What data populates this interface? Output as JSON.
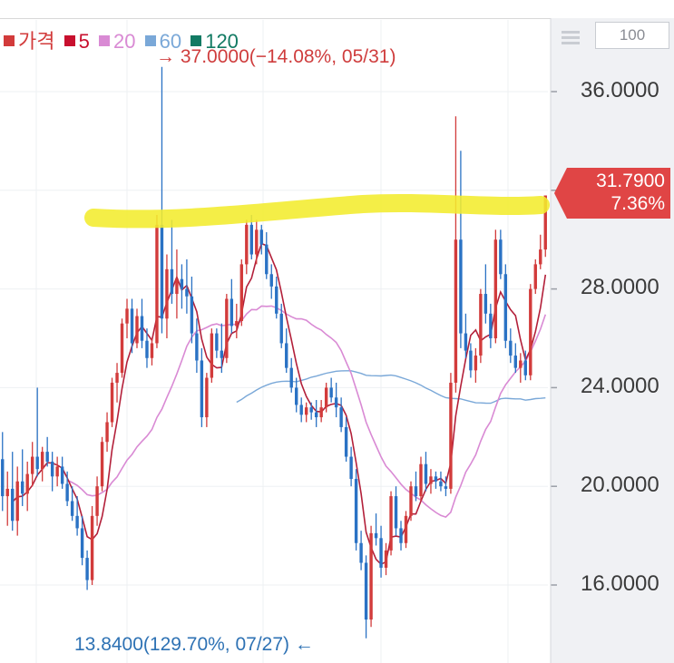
{
  "zoom": {
    "value": "100"
  },
  "icons": {
    "menu": "hamburger-menu-icon",
    "max_arrow": "arrow-right-icon",
    "min_arrow": "arrow-left-icon"
  },
  "legend": {
    "items": [
      {
        "label": "가격",
        "color": "#d23b3b"
      },
      {
        "label": "5",
        "color": "#c8102e"
      },
      {
        "label": "20",
        "color": "#d98ad4"
      },
      {
        "label": "60",
        "color": "#7aa8d8"
      },
      {
        "label": "120",
        "color": "#127a63"
      }
    ]
  },
  "annotations": {
    "max": "→ 37.0000(−14.08%, 05/31)",
    "min": "13.8400(129.70%, 07/27) ←"
  },
  "current": {
    "price": "31.7900",
    "change": "7.36%",
    "color": "#e04545"
  },
  "highlight": {
    "color": "#f2ec2e"
  },
  "chart_data": {
    "type": "candlestick",
    "up_color": "#d23b3b",
    "down_color": "#2a72c4",
    "ylim": [
      13.3,
      37.0
    ],
    "yticks": [
      "16.0000",
      "20.0000",
      "24.0000",
      "28.0000",
      "32.0000",
      "36.0000"
    ],
    "grid": true,
    "legend_position": "top-left",
    "candles": [
      [
        21.1,
        22.2,
        19.0,
        19.6
      ],
      [
        19.6,
        20.6,
        18.4,
        19.9
      ],
      [
        19.9,
        21.4,
        18.2,
        18.6
      ],
      [
        18.6,
        20.8,
        18.0,
        20.2
      ],
      [
        20.2,
        21.5,
        19.2,
        19.7
      ],
      [
        19.7,
        21.0,
        19.0,
        20.5
      ],
      [
        20.5,
        21.8,
        20.0,
        21.2
      ],
      [
        21.2,
        24.0,
        20.4,
        20.7
      ],
      [
        20.7,
        21.6,
        20.2,
        21.4
      ],
      [
        21.4,
        22.0,
        20.8,
        21.0
      ],
      [
        21.0,
        21.4,
        19.8,
        20.4
      ],
      [
        20.4,
        21.2,
        20.0,
        20.8
      ],
      [
        20.8,
        21.2,
        19.9,
        20.1
      ],
      [
        20.1,
        20.6,
        19.2,
        19.4
      ],
      [
        19.4,
        20.0,
        18.6,
        18.8
      ],
      [
        18.8,
        19.6,
        18.0,
        18.3
      ],
      [
        18.3,
        18.8,
        16.8,
        17.1
      ],
      [
        17.1,
        17.4,
        15.8,
        16.2
      ],
      [
        16.2,
        19.2,
        16.0,
        18.8
      ],
      [
        18.8,
        20.4,
        18.4,
        20.0
      ],
      [
        20.0,
        22.0,
        19.8,
        21.8
      ],
      [
        21.8,
        23.0,
        21.4,
        22.6
      ],
      [
        22.6,
        24.4,
        22.4,
        24.2
      ],
      [
        24.2,
        25.0,
        23.4,
        24.6
      ],
      [
        24.6,
        26.8,
        24.4,
        26.6
      ],
      [
        26.6,
        27.6,
        26.0,
        27.2
      ],
      [
        27.2,
        27.6,
        25.4,
        25.8
      ],
      [
        25.8,
        27.2,
        25.6,
        26.9
      ],
      [
        26.9,
        27.6,
        25.6,
        25.9
      ],
      [
        25.9,
        26.4,
        24.8,
        25.2
      ],
      [
        25.2,
        26.0,
        24.9,
        25.8
      ],
      [
        25.8,
        31.0,
        25.6,
        30.6
      ],
      [
        30.6,
        37.0,
        26.2,
        26.8
      ],
      [
        26.8,
        29.4,
        26.0,
        28.8
      ],
      [
        28.8,
        30.8,
        27.4,
        27.8
      ],
      [
        27.8,
        29.6,
        26.8,
        28.4
      ],
      [
        28.4,
        29.0,
        27.2,
        28.0
      ],
      [
        28.0,
        29.2,
        27.0,
        27.7
      ],
      [
        27.7,
        28.5,
        25.8,
        26.2
      ],
      [
        26.2,
        26.8,
        24.6,
        25.1
      ],
      [
        25.1,
        25.6,
        22.4,
        22.8
      ],
      [
        22.8,
        24.6,
        22.4,
        24.4
      ],
      [
        24.4,
        26.4,
        24.2,
        26.2
      ],
      [
        26.2,
        26.4,
        25.2,
        25.5
      ],
      [
        25.5,
        26.6,
        24.6,
        25.2
      ],
      [
        25.2,
        27.8,
        25.0,
        27.6
      ],
      [
        27.6,
        28.4,
        26.2,
        26.5
      ],
      [
        26.5,
        27.4,
        26.0,
        26.7
      ],
      [
        26.7,
        29.2,
        26.5,
        29.0
      ],
      [
        29.0,
        30.8,
        28.6,
        30.6
      ],
      [
        30.6,
        31.0,
        29.2,
        29.4
      ],
      [
        29.4,
        30.8,
        29.0,
        30.4
      ],
      [
        30.4,
        30.6,
        29.4,
        29.8
      ],
      [
        29.8,
        30.3,
        28.4,
        28.6
      ],
      [
        28.6,
        29.0,
        27.6,
        28.1
      ],
      [
        28.1,
        28.5,
        26.8,
        27.0
      ],
      [
        27.0,
        27.4,
        25.6,
        25.8
      ],
      [
        25.8,
        26.4,
        24.6,
        24.8
      ],
      [
        24.8,
        25.2,
        23.8,
        24.0
      ],
      [
        24.0,
        24.4,
        23.0,
        23.3
      ],
      [
        23.3,
        23.6,
        22.6,
        22.9
      ],
      [
        22.9,
        23.4,
        22.6,
        23.2
      ],
      [
        23.2,
        23.4,
        22.7,
        23.0
      ],
      [
        23.0,
        23.5,
        22.4,
        22.8
      ],
      [
        22.8,
        23.5,
        22.6,
        23.2
      ],
      [
        23.2,
        24.2,
        23.0,
        24.0
      ],
      [
        24.0,
        24.4,
        23.4,
        23.6
      ],
      [
        23.6,
        24.2,
        22.8,
        23.2
      ],
      [
        23.2,
        23.6,
        22.2,
        22.4
      ],
      [
        22.4,
        22.8,
        21.0,
        21.2
      ],
      [
        21.2,
        21.6,
        20.0,
        20.3
      ],
      [
        20.3,
        20.7,
        17.4,
        17.7
      ],
      [
        17.7,
        18.2,
        16.6,
        16.9
      ],
      [
        16.9,
        17.2,
        13.84,
        14.6
      ],
      [
        14.6,
        18.4,
        14.3,
        18.1
      ],
      [
        18.1,
        18.9,
        17.6,
        17.9
      ],
      [
        17.9,
        18.4,
        16.3,
        16.7
      ],
      [
        16.7,
        17.7,
        16.4,
        17.4
      ],
      [
        17.4,
        19.8,
        17.2,
        19.6
      ],
      [
        19.6,
        20.0,
        18.0,
        18.3
      ],
      [
        18.3,
        18.6,
        17.4,
        17.7
      ],
      [
        17.7,
        19.0,
        17.5,
        18.8
      ],
      [
        18.8,
        20.2,
        18.6,
        20.0
      ],
      [
        20.0,
        20.6,
        19.4,
        19.6
      ],
      [
        19.6,
        21.2,
        19.4,
        20.9
      ],
      [
        20.9,
        21.4,
        19.8,
        20.1
      ],
      [
        20.1,
        20.7,
        19.7,
        20.4
      ],
      [
        20.4,
        20.6,
        19.9,
        20.2
      ],
      [
        20.2,
        20.6,
        19.8,
        20.0
      ],
      [
        20.0,
        20.4,
        19.6,
        19.9
      ],
      [
        19.9,
        24.6,
        19.7,
        24.2
      ],
      [
        24.2,
        35.0,
        23.8,
        30.0
      ],
      [
        30.0,
        33.6,
        25.6,
        26.2
      ],
      [
        26.2,
        27.0,
        25.2,
        25.5
      ],
      [
        25.5,
        25.8,
        24.4,
        24.7
      ],
      [
        24.7,
        25.6,
        24.2,
        25.3
      ],
      [
        25.3,
        28.0,
        25.0,
        27.8
      ],
      [
        27.8,
        29.0,
        26.6,
        27.0
      ],
      [
        27.0,
        27.4,
        25.6,
        26.0
      ],
      [
        26.0,
        30.4,
        25.8,
        30.0
      ],
      [
        30.0,
        30.4,
        28.4,
        28.6
      ],
      [
        28.6,
        29.0,
        25.6,
        25.9
      ],
      [
        25.9,
        26.4,
        25.0,
        25.3
      ],
      [
        25.3,
        25.8,
        24.6,
        24.8
      ],
      [
        24.8,
        25.4,
        24.2,
        25.1
      ],
      [
        25.1,
        25.5,
        24.3,
        24.5
      ],
      [
        24.5,
        28.2,
        24.3,
        28.0
      ],
      [
        28.0,
        29.2,
        27.8,
        29.0
      ],
      [
        29.0,
        30.2,
        28.8,
        29.6
      ],
      [
        29.6,
        31.79,
        29.3,
        31.79
      ]
    ]
  }
}
